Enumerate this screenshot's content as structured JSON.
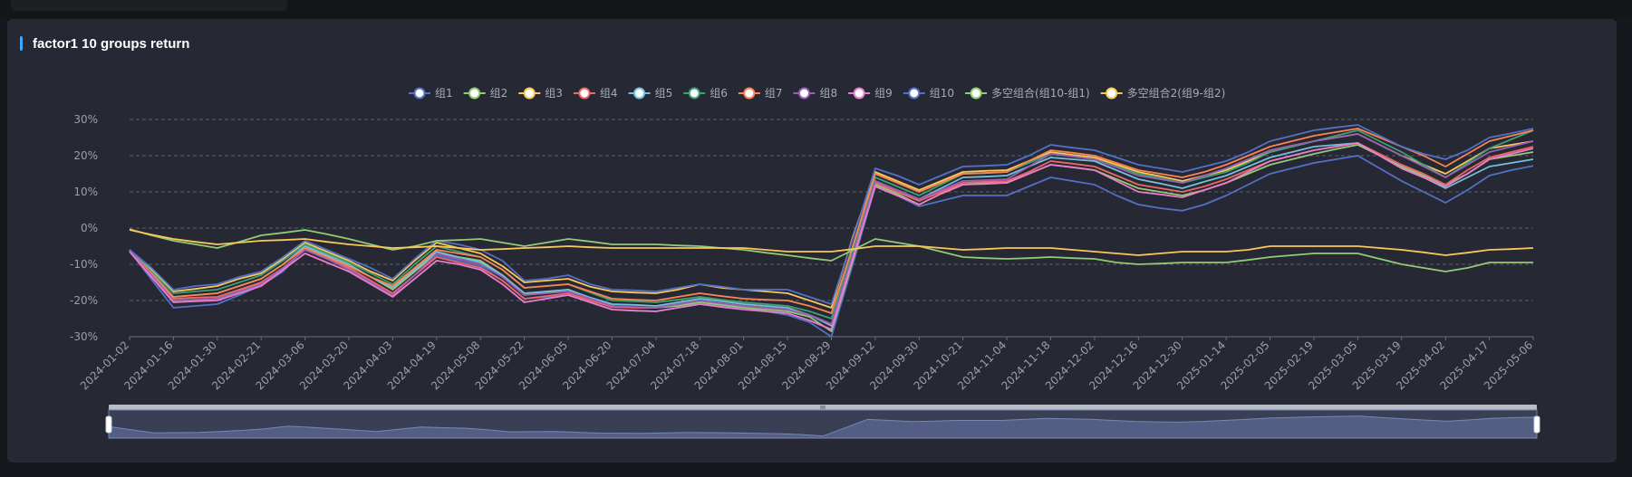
{
  "panel": {
    "title": "factor1 10 groups return"
  },
  "colors": [
    "#5470c6",
    "#91cc75",
    "#fac858",
    "#ee6666",
    "#73c0de",
    "#3ba272",
    "#fc8452",
    "#9a60b4",
    "#ea7ccc",
    "#5470c6",
    "#91cc75",
    "#fac858"
  ],
  "chart_data": {
    "type": "line",
    "title": "factor1 10 groups return",
    "xlabel": "",
    "ylabel": "",
    "ylim": [
      -30,
      30
    ],
    "y_ticks": [
      "30%",
      "20%",
      "10%",
      "0%",
      "-10%",
      "-20%",
      "-30%"
    ],
    "y_tick_values": [
      30,
      20,
      10,
      0,
      -10,
      -20,
      -30
    ],
    "grid": true,
    "legend_position": "top-center",
    "x": [
      "2024-01-02",
      "2024-01-09",
      "2024-01-16",
      "2024-01-23",
      "2024-01-30",
      "2024-02-06",
      "2024-02-21",
      "2024-02-28",
      "2024-03-06",
      "2024-03-13",
      "2024-03-20",
      "2024-03-27",
      "2024-04-03",
      "2024-04-10",
      "2024-04-19",
      "2024-04-26",
      "2024-05-08",
      "2024-05-15",
      "2024-05-22",
      "2024-05-29",
      "2024-06-05",
      "2024-06-12",
      "2024-06-20",
      "2024-06-27",
      "2024-07-04",
      "2024-07-11",
      "2024-07-18",
      "2024-07-25",
      "2024-08-01",
      "2024-08-08",
      "2024-08-15",
      "2024-08-22",
      "2024-08-29",
      "2024-09-05",
      "2024-09-12",
      "2024-09-19",
      "2024-09-30",
      "2024-10-14",
      "2024-10-21",
      "2024-10-28",
      "2024-11-04",
      "2024-11-11",
      "2024-11-18",
      "2024-11-25",
      "2024-12-02",
      "2024-12-09",
      "2024-12-16",
      "2024-12-23",
      "2024-12-30",
      "2025-01-07",
      "2025-01-14",
      "2025-01-21",
      "2025-02-05",
      "2025-02-12",
      "2025-02-19",
      "2025-02-26",
      "2025-03-05",
      "2025-03-12",
      "2025-03-19",
      "2025-03-26",
      "2025-04-02",
      "2025-04-09",
      "2025-04-17",
      "2025-04-24",
      "2025-05-06"
    ],
    "x_labels": [
      "2024-01-02",
      "2024-01-16",
      "2024-01-30",
      "2024-02-21",
      "2024-03-06",
      "2024-03-20",
      "2024-04-03",
      "2024-04-19",
      "2024-05-08",
      "2024-05-22",
      "2024-06-05",
      "2024-06-20",
      "2024-07-04",
      "2024-07-18",
      "2024-08-01",
      "2024-08-15",
      "2024-08-29",
      "2024-09-12",
      "2024-09-30",
      "2024-10-21",
      "2024-11-04",
      "2024-11-18",
      "2024-12-02",
      "2024-12-16",
      "2024-12-30",
      "2025-01-14",
      "2025-02-05",
      "2025-02-19",
      "2025-03-05",
      "2025-03-19",
      "2025-04-02",
      "2025-04-17",
      "2025-05-06"
    ],
    "series": [
      {
        "name": "组1",
        "values": [
          -6.3,
          -14.2,
          -22.0,
          -21.5,
          -21.0,
          -18.5,
          -15.8,
          -12.0,
          -5.5,
          -8.0,
          -11.5,
          -15.0,
          -18.5,
          -13.0,
          -7.5,
          -9.0,
          -10.5,
          -14.5,
          -19.5,
          -19.0,
          -18.5,
          -20.5,
          -22.5,
          -22.8,
          -23.0,
          -22.0,
          -21.0,
          -21.5,
          -22.0,
          -23.0,
          -24.0,
          -26.0,
          -30.0,
          -9.5,
          11.5,
          9.0,
          6.0,
          7.5,
          9.0,
          9.0,
          9.0,
          11.5,
          14.0,
          13.0,
          12.0,
          9.0,
          6.5,
          5.5,
          4.8,
          6.5,
          9.0,
          12.0,
          15.0,
          16.5,
          18.0,
          19.0,
          20.0,
          16.5,
          13.0,
          10.0,
          7.0,
          10.5,
          14.5,
          16.0,
          17.2
        ]
      },
      {
        "name": "组2",
        "values": [
          -6.0,
          -13.0,
          -20.0,
          -19.8,
          -19.5,
          -17.5,
          -15.0,
          -11.0,
          -6.0,
          -8.0,
          -10.5,
          -13.5,
          -17.0,
          -12.0,
          -7.0,
          -8.0,
          -9.0,
          -13.0,
          -18.5,
          -17.7,
          -17.0,
          -19.5,
          -21.5,
          -22.0,
          -22.0,
          -21.5,
          -20.5,
          -21.2,
          -22.0,
          -22.5,
          -23.0,
          -24.5,
          -28.5,
          -8.5,
          12.0,
          9.5,
          6.5,
          9.5,
          12.0,
          12.5,
          12.5,
          15.0,
          17.5,
          16.8,
          16.0,
          13.5,
          11.0,
          10.0,
          9.0,
          10.5,
          12.5,
          15.0,
          17.5,
          19.0,
          20.5,
          21.8,
          23.0,
          20.0,
          17.0,
          14.5,
          12.0,
          15.0,
          19.0,
          20.0,
          21.0
        ]
      },
      {
        "name": "组3",
        "values": [
          -6.0,
          -11.5,
          -17.5,
          -16.8,
          -16.0,
          -14.0,
          -12.5,
          -8.5,
          -4.0,
          -6.5,
          -9.0,
          -12.0,
          -14.5,
          -9.0,
          -4.0,
          -5.5,
          -7.0,
          -10.5,
          -15.0,
          -14.5,
          -14.0,
          -16.2,
          -17.5,
          -17.8,
          -18.0,
          -17.0,
          -15.5,
          -16.5,
          -17.0,
          -17.5,
          -18.0,
          -20.0,
          -22.0,
          -2.0,
          15.5,
          13.0,
          10.5,
          13.0,
          15.5,
          15.8,
          16.0,
          18.5,
          21.0,
          20.2,
          19.5,
          17.5,
          15.5,
          14.3,
          13.0,
          14.5,
          16.0,
          18.5,
          21.0,
          22.5,
          24.0,
          25.0,
          26.0,
          23.0,
          20.0,
          17.5,
          15.0,
          18.5,
          22.0,
          23.0,
          24.0
        ]
      },
      {
        "name": "组4",
        "values": [
          -6.2,
          -13.0,
          -19.5,
          -19.2,
          -19.0,
          -17.0,
          -15.0,
          -11.0,
          -6.0,
          -8.5,
          -11.0,
          -14.5,
          -18.0,
          -13.0,
          -8.0,
          -9.5,
          -11.0,
          -14.5,
          -19.5,
          -18.8,
          -18.0,
          -20.0,
          -21.8,
          -22.0,
          -22.0,
          -21.0,
          -20.0,
          -20.8,
          -21.5,
          -22.0,
          -22.5,
          -24.0,
          -26.5,
          -7.5,
          12.5,
          10.0,
          7.5,
          10.0,
          12.5,
          12.8,
          13.0,
          15.5,
          18.5,
          17.8,
          17.0,
          14.5,
          12.0,
          11.0,
          10.0,
          11.5,
          13.5,
          16.0,
          18.5,
          20.0,
          21.5,
          22.5,
          23.5,
          20.5,
          17.5,
          15.0,
          12.0,
          16.0,
          19.5,
          21.0,
          22.5
        ]
      },
      {
        "name": "组5",
        "values": [
          -6.0,
          -12.5,
          -19.0,
          -18.5,
          -18.0,
          -16.0,
          -14.0,
          -10.0,
          -5.0,
          -7.5,
          -10.0,
          -13.5,
          -16.5,
          -11.5,
          -6.5,
          -8.0,
          -9.5,
          -13.0,
          -18.0,
          -17.5,
          -17.0,
          -19.2,
          -21.0,
          -21.2,
          -21.5,
          -20.5,
          -19.5,
          -20.2,
          -21.0,
          -21.5,
          -22.0,
          -24.0,
          -27.0,
          -7.5,
          13.0,
          10.5,
          8.0,
          11.0,
          14.0,
          14.2,
          14.5,
          17.0,
          19.5,
          19.0,
          18.5,
          16.0,
          13.5,
          12.3,
          11.0,
          12.8,
          14.5,
          17.0,
          19.5,
          21.0,
          22.5,
          23.0,
          23.5,
          20.0,
          16.5,
          14.0,
          11.0,
          14.0,
          17.0,
          18.0,
          19.0
        ]
      },
      {
        "name": "组6",
        "values": [
          -6.0,
          -12.0,
          -18.0,
          -17.5,
          -17.0,
          -15.0,
          -13.0,
          -9.0,
          -4.5,
          -7.0,
          -9.5,
          -12.5,
          -15.5,
          -10.0,
          -5.0,
          -6.5,
          -8.0,
          -11.5,
          -16.5,
          -16.0,
          -15.5,
          -17.8,
          -20.0,
          -20.2,
          -20.5,
          -19.8,
          -19.0,
          -19.8,
          -20.5,
          -21.0,
          -21.5,
          -23.0,
          -25.0,
          -5.5,
          14.0,
          11.5,
          9.0,
          12.0,
          15.0,
          15.2,
          15.5,
          18.0,
          20.5,
          19.8,
          19.0,
          17.0,
          15.0,
          13.8,
          12.5,
          14.0,
          15.5,
          18.0,
          21.0,
          22.5,
          24.0,
          25.5,
          27.0,
          24.0,
          21.0,
          17.5,
          14.0,
          18.0,
          22.0,
          24.5,
          27.0
        ]
      },
      {
        "name": "组7",
        "values": [
          -6.0,
          -12.5,
          -19.0,
          -18.5,
          -18.0,
          -16.0,
          -14.0,
          -10.0,
          -5.5,
          -8.0,
          -10.5,
          -13.5,
          -16.0,
          -11.0,
          -6.0,
          -7.0,
          -8.0,
          -11.5,
          -16.5,
          -16.0,
          -15.5,
          -17.5,
          -19.5,
          -19.8,
          -20.0,
          -19.0,
          -18.0,
          -18.8,
          -19.5,
          -19.8,
          -20.0,
          -21.5,
          -23.5,
          -4.5,
          15.0,
          12.5,
          10.0,
          12.5,
          15.0,
          15.2,
          15.5,
          18.5,
          21.5,
          20.8,
          20.0,
          18.0,
          16.0,
          15.0,
          14.0,
          15.5,
          17.5,
          20.0,
          22.5,
          24.0,
          25.5,
          26.5,
          27.5,
          25.0,
          22.5,
          20.0,
          17.0,
          20.5,
          24.0,
          25.5,
          27.0
        ]
      },
      {
        "name": "组8",
        "values": [
          -6.2,
          -13.0,
          -20.0,
          -19.8,
          -19.5,
          -17.5,
          -15.5,
          -11.0,
          -6.0,
          -8.5,
          -11.5,
          -15.0,
          -18.5,
          -13.0,
          -7.0,
          -8.5,
          -10.0,
          -13.5,
          -18.5,
          -18.0,
          -17.5,
          -19.5,
          -21.5,
          -21.8,
          -22.0,
          -21.0,
          -20.0,
          -20.8,
          -21.5,
          -22.0,
          -22.5,
          -24.0,
          -26.5,
          -7.0,
          13.0,
          10.5,
          8.0,
          10.5,
          13.0,
          13.2,
          13.5,
          17.0,
          20.5,
          19.8,
          19.0,
          16.8,
          14.5,
          13.5,
          12.5,
          14.5,
          16.5,
          19.0,
          21.5,
          22.8,
          24.0,
          25.0,
          26.0,
          23.0,
          20.0,
          17.0,
          14.0,
          17.5,
          21.0,
          22.5,
          24.0
        ]
      },
      {
        "name": "组9",
        "values": [
          -6.5,
          -13.5,
          -20.5,
          -20.2,
          -20.0,
          -18.0,
          -16.0,
          -11.5,
          -7.0,
          -9.5,
          -12.0,
          -15.5,
          -19.0,
          -14.0,
          -9.0,
          -10.0,
          -11.5,
          -15.5,
          -20.5,
          -19.5,
          -18.5,
          -20.5,
          -22.5,
          -22.8,
          -23.0,
          -22.0,
          -21.0,
          -21.8,
          -22.5,
          -23.0,
          -23.5,
          -25.5,
          -28.0,
          -8.0,
          11.5,
          9.0,
          6.5,
          9.5,
          12.0,
          12.2,
          12.5,
          15.0,
          17.5,
          16.8,
          16.0,
          13.0,
          10.0,
          9.3,
          8.5,
          10.5,
          12.5,
          15.5,
          18.5,
          20.0,
          21.5,
          22.5,
          23.5,
          20.0,
          16.5,
          14.0,
          11.5,
          15.0,
          19.0,
          20.5,
          22.0
        ]
      },
      {
        "name": "组10",
        "values": [
          -6.0,
          -11.0,
          -17.0,
          -16.0,
          -15.5,
          -13.5,
          -12.0,
          -8.0,
          -3.5,
          -6.0,
          -8.5,
          -11.0,
          -14.0,
          -8.5,
          -3.5,
          -4.5,
          -6.0,
          -9.0,
          -14.5,
          -14.0,
          -13.0,
          -15.5,
          -17.0,
          -17.2,
          -17.5,
          -16.5,
          -15.5,
          -16.2,
          -17.0,
          -17.0,
          -17.0,
          -19.0,
          -21.0,
          -2.5,
          16.5,
          14.5,
          12.0,
          14.5,
          17.0,
          17.2,
          17.5,
          20.0,
          23.0,
          22.2,
          21.5,
          19.5,
          17.5,
          16.5,
          15.5,
          17.0,
          18.5,
          21.0,
          24.0,
          25.5,
          27.0,
          27.8,
          28.5,
          25.5,
          22.5,
          20.5,
          19.0,
          21.5,
          25.0,
          26.2,
          27.5
        ]
      },
      {
        "name": "多空组合(组10-组1)",
        "values": [
          -0.3,
          -2.0,
          -3.5,
          -4.5,
          -5.5,
          -3.8,
          -2.0,
          -1.3,
          -0.5,
          -1.7,
          -3.0,
          -4.5,
          -6.0,
          -5.0,
          -3.5,
          -3.3,
          -3.0,
          -4.0,
          -5.0,
          -4.0,
          -3.0,
          -3.7,
          -4.5,
          -4.5,
          -4.5,
          -4.8,
          -5.0,
          -5.5,
          -6.0,
          -6.8,
          -7.5,
          -8.3,
          -9.0,
          -6.0,
          -3.0,
          -4.0,
          -5.0,
          -6.5,
          -8.0,
          -8.3,
          -8.5,
          -8.3,
          -8.0,
          -8.3,
          -8.5,
          -9.5,
          -10.0,
          -9.8,
          -9.5,
          -9.5,
          -9.5,
          -8.8,
          -8.0,
          -7.5,
          -7.0,
          -7.0,
          -7.0,
          -8.5,
          -10.0,
          -11.0,
          -12.0,
          -11.0,
          -9.5,
          -9.5,
          -9.5
        ]
      },
      {
        "name": "多空组合2(组9-组2)",
        "values": [
          -0.5,
          -1.8,
          -3.0,
          -3.8,
          -4.5,
          -4.0,
          -3.5,
          -3.3,
          -3.0,
          -3.8,
          -4.5,
          -5.0,
          -5.5,
          -5.3,
          -5.0,
          -5.5,
          -6.0,
          -5.8,
          -5.5,
          -5.3,
          -5.0,
          -5.3,
          -5.5,
          -5.5,
          -5.5,
          -5.5,
          -5.5,
          -5.5,
          -5.5,
          -6.0,
          -6.5,
          -6.5,
          -6.5,
          -5.8,
          -5.0,
          -5.0,
          -5.0,
          -5.5,
          -6.0,
          -5.8,
          -5.5,
          -5.5,
          -5.5,
          -6.0,
          -6.5,
          -7.0,
          -7.5,
          -7.0,
          -6.5,
          -6.5,
          -6.5,
          -6.0,
          -5.0,
          -5.0,
          -5.0,
          -5.0,
          -5.0,
          -5.5,
          -6.0,
          -6.7,
          -7.5,
          -6.8,
          -6.0,
          -5.8,
          -5.5
        ]
      }
    ]
  }
}
